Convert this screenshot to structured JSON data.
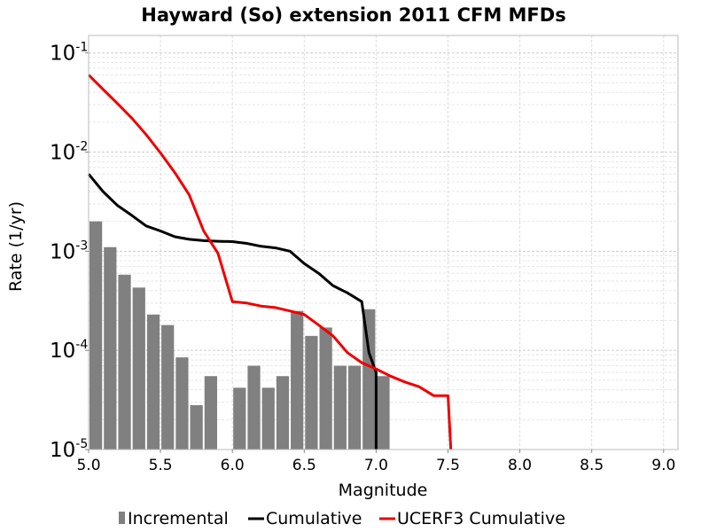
{
  "chart_data": {
    "type": "bar",
    "title": "Hayward (So) extension 2011 CFM MFDs",
    "xlabel": "Magnitude",
    "ylabel": "Rate (1/yr)",
    "xlim": [
      5.0,
      9.1
    ],
    "ylim": [
      1e-05,
      0.15
    ],
    "y_scale": "log",
    "x_ticks": [
      "5.0",
      "5.5",
      "6.0",
      "6.5",
      "7.0",
      "7.5",
      "8.0",
      "8.5",
      "9.0"
    ],
    "y_ticks": [
      {
        "base": "10",
        "exp": "-5",
        "value": 1e-05
      },
      {
        "base": "10",
        "exp": "-4",
        "value": 0.0001
      },
      {
        "base": "10",
        "exp": "-3",
        "value": 0.001
      },
      {
        "base": "10",
        "exp": "-2",
        "value": 0.01
      },
      {
        "base": "10",
        "exp": "-1",
        "value": 0.1
      }
    ],
    "grid": true,
    "legend_position": "bottom",
    "series": [
      {
        "name": "Incremental",
        "type": "bar",
        "color": "#808080",
        "x": [
          5.0,
          5.1,
          5.2,
          5.3,
          5.4,
          5.5,
          5.6,
          5.7,
          5.8,
          5.9,
          6.0,
          6.1,
          6.2,
          6.3,
          6.4,
          6.5,
          6.6,
          6.7,
          6.8,
          6.9,
          7.0
        ],
        "values": [
          0.002,
          0.0011,
          0.00058,
          0.00043,
          0.00023,
          0.00018,
          8.5e-05,
          2.8e-05,
          5.5e-05,
          0.0,
          4.2e-05,
          7e-05,
          4.2e-05,
          5.5e-05,
          0.00025,
          0.00014,
          0.00017,
          7e-05,
          7e-05,
          0.00026,
          5.5e-05
        ]
      },
      {
        "name": "Cumulative",
        "type": "line",
        "color": "#000000",
        "x": [
          5.0,
          5.1,
          5.2,
          5.3,
          5.4,
          5.5,
          5.6,
          5.7,
          5.8,
          5.9,
          6.0,
          6.1,
          6.2,
          6.3,
          6.4,
          6.5,
          6.6,
          6.7,
          6.8,
          6.9,
          6.95,
          7.0,
          7.0
        ],
        "y": [
          0.006,
          0.004,
          0.0029,
          0.0023,
          0.0018,
          0.0016,
          0.0014,
          0.00132,
          0.00128,
          0.00126,
          0.00125,
          0.0012,
          0.00112,
          0.00108,
          0.001,
          0.00075,
          0.0006,
          0.00045,
          0.00038,
          0.00031,
          9.5e-05,
          6e-05,
          1e-05
        ]
      },
      {
        "name": "UCERF3 Cumulative",
        "type": "line",
        "color": "#ee0000",
        "x": [
          5.0,
          5.1,
          5.2,
          5.3,
          5.4,
          5.5,
          5.6,
          5.7,
          5.8,
          5.9,
          6.0,
          6.1,
          6.2,
          6.3,
          6.4,
          6.5,
          6.6,
          6.7,
          6.8,
          6.9,
          7.0,
          7.1,
          7.2,
          7.3,
          7.4,
          7.5,
          7.52
        ],
        "y": [
          0.06,
          0.043,
          0.031,
          0.022,
          0.015,
          0.0098,
          0.0062,
          0.0037,
          0.0016,
          0.00095,
          0.00031,
          0.0003,
          0.00028,
          0.00027,
          0.00025,
          0.00023,
          0.00018,
          0.00014,
          9.5e-05,
          7.5e-05,
          6.5e-05,
          5.5e-05,
          4.8e-05,
          4.3e-05,
          3.5e-05,
          3.5e-05,
          1e-05
        ]
      }
    ]
  }
}
